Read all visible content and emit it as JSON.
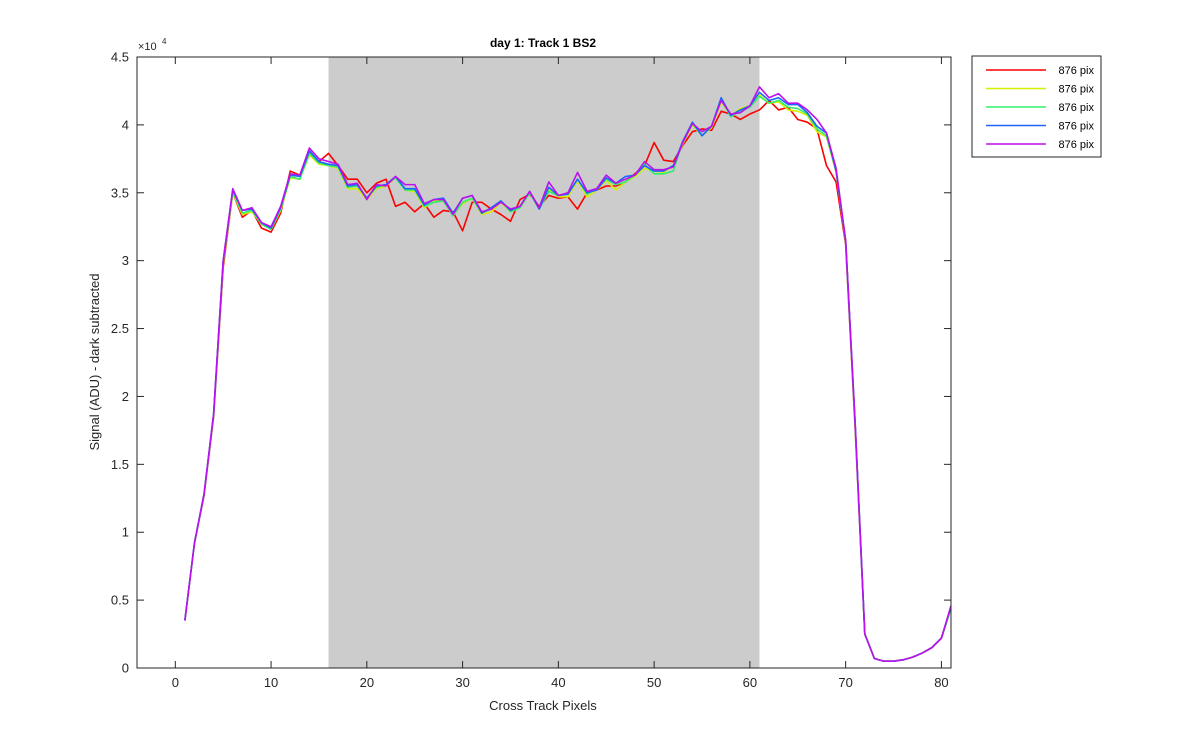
{
  "chart_data": {
    "type": "line",
    "title": "day 1: Track 1  BS2",
    "xlabel": "Cross Track Pixels",
    "ylabel": "Signal (ADU) - dark subtracted",
    "y_exponent_prefix": "×10",
    "y_exponent_power": "4",
    "xlim": [
      -4,
      81
    ],
    "ylim": [
      0,
      4.5
    ],
    "y_scale_note": "y values shown in units of 10^4",
    "xticks": [
      0,
      10,
      20,
      30,
      40,
      50,
      60,
      70,
      80
    ],
    "xtick_labels": [
      "0",
      "10",
      "20",
      "30",
      "40",
      "50",
      "60",
      "70",
      "80"
    ],
    "yticks": [
      0,
      0.5,
      1,
      1.5,
      2,
      2.5,
      3,
      3.5,
      4,
      4.5
    ],
    "ytick_labels": [
      "0",
      "0.5",
      "1",
      "1.5",
      "2",
      "2.5",
      "3",
      "3.5",
      "4",
      "4.5"
    ],
    "grid": false,
    "shaded_region": {
      "x": [
        16,
        61
      ],
      "color": "#cccccc"
    },
    "legend_position": "outside top-right",
    "x": [
      1,
      2,
      3,
      4,
      5,
      6,
      7,
      8,
      9,
      10,
      11,
      12,
      13,
      14,
      15,
      16,
      17,
      18,
      19,
      20,
      21,
      22,
      23,
      24,
      25,
      26,
      27,
      28,
      29,
      30,
      31,
      32,
      33,
      34,
      35,
      36,
      37,
      38,
      39,
      40,
      41,
      42,
      43,
      44,
      45,
      46,
      47,
      48,
      49,
      50,
      51,
      52,
      53,
      54,
      55,
      56,
      57,
      58,
      59,
      60,
      61,
      62,
      63,
      64,
      65,
      66,
      67,
      68,
      69,
      70,
      71,
      72,
      73,
      74,
      75,
      76,
      77,
      78,
      79,
      80,
      81
    ],
    "series": [
      {
        "name": "876 pix",
        "color": "#ff0000",
        "values": [
          0.35,
          0.92,
          1.27,
          1.85,
          2.95,
          3.5,
          3.32,
          3.37,
          3.24,
          3.21,
          3.35,
          3.66,
          3.63,
          3.8,
          3.73,
          3.79,
          3.7,
          3.6,
          3.6,
          3.5,
          3.57,
          3.6,
          3.4,
          3.43,
          3.36,
          3.42,
          3.32,
          3.37,
          3.36,
          3.22,
          3.43,
          3.43,
          3.38,
          3.34,
          3.29,
          3.45,
          3.49,
          3.4,
          3.48,
          3.46,
          3.47,
          3.38,
          3.5,
          3.52,
          3.55,
          3.55,
          3.58,
          3.64,
          3.7,
          3.87,
          3.74,
          3.73,
          3.85,
          3.95,
          3.97,
          3.96,
          4.1,
          4.08,
          4.04,
          4.08,
          4.11,
          4.18,
          4.11,
          4.13,
          4.04,
          4.02,
          3.97,
          3.7,
          3.58,
          3.12,
          1.75,
          0.25,
          0.07,
          0.05,
          0.05,
          0.06,
          0.08,
          0.11,
          0.15,
          0.22,
          0.44
        ]
      },
      {
        "name": "876 pix",
        "color": "#d4f000",
        "values": [
          0.35,
          0.92,
          1.28,
          1.86,
          2.98,
          3.5,
          3.34,
          3.36,
          3.27,
          3.23,
          3.37,
          3.61,
          3.6,
          3.78,
          3.71,
          3.7,
          3.68,
          3.53,
          3.53,
          3.45,
          3.53,
          3.55,
          3.61,
          3.52,
          3.51,
          3.39,
          3.44,
          3.44,
          3.34,
          3.42,
          3.46,
          3.34,
          3.36,
          3.43,
          3.36,
          3.39,
          3.5,
          3.38,
          3.53,
          3.47,
          3.47,
          3.59,
          3.47,
          3.52,
          3.59,
          3.52,
          3.58,
          3.62,
          3.68,
          3.66,
          3.65,
          3.7,
          3.86,
          4.0,
          3.92,
          3.98,
          4.17,
          4.07,
          4.12,
          4.14,
          4.22,
          4.16,
          4.17,
          4.11,
          4.1,
          4.07,
          3.95,
          3.91,
          3.65,
          3.14,
          1.78,
          0.25,
          0.07,
          0.05,
          0.05,
          0.06,
          0.08,
          0.11,
          0.15,
          0.22,
          0.44
        ]
      },
      {
        "name": "876 pix",
        "color": "#33ee66",
        "values": [
          0.35,
          0.92,
          1.28,
          1.87,
          2.99,
          3.51,
          3.35,
          3.37,
          3.27,
          3.23,
          3.38,
          3.62,
          3.6,
          3.79,
          3.72,
          3.7,
          3.69,
          3.54,
          3.55,
          3.46,
          3.54,
          3.56,
          3.61,
          3.52,
          3.52,
          3.4,
          3.43,
          3.44,
          3.33,
          3.43,
          3.46,
          3.35,
          3.38,
          3.44,
          3.36,
          3.39,
          3.5,
          3.38,
          3.51,
          3.48,
          3.49,
          3.6,
          3.49,
          3.53,
          3.6,
          3.56,
          3.58,
          3.63,
          3.71,
          3.64,
          3.64,
          3.66,
          3.88,
          4.01,
          3.92,
          3.99,
          4.19,
          4.06,
          4.1,
          4.13,
          4.21,
          4.16,
          4.18,
          4.13,
          4.12,
          4.08,
          3.97,
          3.92,
          3.66,
          3.14,
          1.78,
          0.25,
          0.07,
          0.05,
          0.05,
          0.06,
          0.08,
          0.11,
          0.15,
          0.22,
          0.44
        ]
      },
      {
        "name": "876 pix",
        "color": "#1a66ff",
        "values": [
          0.35,
          0.92,
          1.28,
          1.87,
          3.0,
          3.52,
          3.37,
          3.38,
          3.28,
          3.24,
          3.39,
          3.63,
          3.62,
          3.81,
          3.73,
          3.71,
          3.7,
          3.55,
          3.56,
          3.46,
          3.55,
          3.56,
          3.62,
          3.53,
          3.53,
          3.41,
          3.45,
          3.46,
          3.35,
          3.46,
          3.48,
          3.35,
          3.39,
          3.44,
          3.37,
          3.4,
          3.51,
          3.38,
          3.54,
          3.48,
          3.49,
          3.6,
          3.5,
          3.52,
          3.61,
          3.57,
          3.62,
          3.63,
          3.7,
          3.66,
          3.66,
          3.7,
          3.88,
          4.02,
          3.92,
          3.99,
          4.2,
          4.07,
          4.11,
          4.14,
          4.24,
          4.18,
          4.2,
          4.15,
          4.15,
          4.09,
          3.99,
          3.94,
          3.66,
          3.15,
          1.79,
          0.25,
          0.07,
          0.05,
          0.05,
          0.06,
          0.08,
          0.11,
          0.15,
          0.22,
          0.45
        ]
      },
      {
        "name": "876 pix",
        "color": "#bb11ee",
        "values": [
          0.35,
          0.92,
          1.28,
          1.87,
          3.0,
          3.53,
          3.37,
          3.39,
          3.28,
          3.25,
          3.4,
          3.64,
          3.63,
          3.83,
          3.75,
          3.73,
          3.71,
          3.56,
          3.57,
          3.45,
          3.56,
          3.55,
          3.62,
          3.56,
          3.56,
          3.42,
          3.45,
          3.45,
          3.34,
          3.46,
          3.48,
          3.36,
          3.38,
          3.43,
          3.38,
          3.4,
          3.51,
          3.39,
          3.58,
          3.48,
          3.5,
          3.65,
          3.51,
          3.53,
          3.63,
          3.57,
          3.6,
          3.63,
          3.73,
          3.67,
          3.67,
          3.69,
          3.87,
          4.01,
          3.95,
          3.99,
          4.18,
          4.08,
          4.09,
          4.14,
          4.28,
          4.2,
          4.23,
          4.16,
          4.16,
          4.11,
          4.04,
          3.94,
          3.68,
          3.15,
          1.79,
          0.25,
          0.07,
          0.05,
          0.05,
          0.06,
          0.08,
          0.11,
          0.15,
          0.22,
          0.46
        ]
      }
    ]
  }
}
